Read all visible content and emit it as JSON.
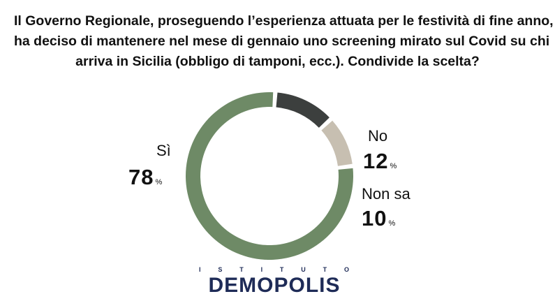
{
  "question": {
    "line1": "Il Governo Regionale, proseguendo l’esperienza attuata per le festività di fine anno,",
    "line2": "ha deciso di mantenere nel mese di gennaio uno screening mirato sul Covid su chi",
    "line3": "arriva in Sicilia (obbligo di tamponi, ecc.). Condivide la scelta?"
  },
  "chart_data": {
    "type": "pie",
    "style": "donut",
    "categories": [
      "Sì",
      "No",
      "Non sa"
    ],
    "values": [
      78,
      12,
      10
    ],
    "colors": [
      "#6e8a66",
      "#3c3f3e",
      "#c7bfb1"
    ],
    "labels": [
      {
        "name": "Sì",
        "value": "78"
      },
      {
        "name": "No",
        "value": "12"
      },
      {
        "name": "Non sa",
        "value": "10"
      }
    ],
    "unit": "%"
  },
  "logo": {
    "top_letters": [
      "I",
      "S",
      "T",
      "I",
      "T",
      "U",
      "T",
      "O"
    ],
    "name": "DEMOPOLIS"
  }
}
